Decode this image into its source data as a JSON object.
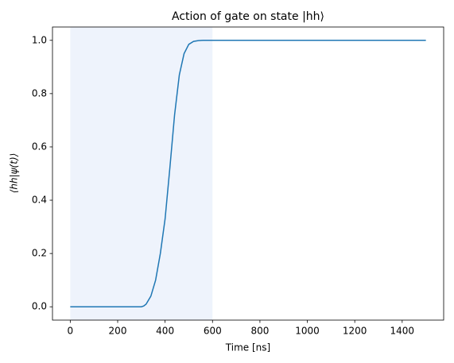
{
  "chart_data": {
    "type": "line",
    "title": "Action of gate on state |hh⟩",
    "xlabel": "Time [ns]",
    "ylabel": "⟨hh|ψ(t)⟩",
    "x": [
      0,
      300,
      310,
      320,
      340,
      360,
      380,
      400,
      420,
      440,
      460,
      480,
      500,
      520,
      540,
      560,
      600,
      1500
    ],
    "values": [
      0,
      0,
      0.003,
      0.01,
      0.04,
      0.1,
      0.2,
      0.33,
      0.52,
      0.72,
      0.87,
      0.95,
      0.985,
      0.996,
      0.999,
      1,
      1,
      1
    ],
    "color": "#1f77b4",
    "shaded_region": {
      "x": [
        0,
        600
      ],
      "color": "#eef3fc"
    },
    "xlim": [
      -75,
      1575
    ],
    "xticks": [
      0,
      200,
      400,
      600,
      800,
      1000,
      1200,
      1400
    ],
    "ylim": [
      -0.05,
      1.05
    ],
    "yticks": [
      {
        "value": 0,
        "label": "0.0"
      },
      0.2,
      0.4,
      0.6,
      0.8,
      {
        "value": 1,
        "label": "1.0"
      }
    ],
    "grid": false
  }
}
